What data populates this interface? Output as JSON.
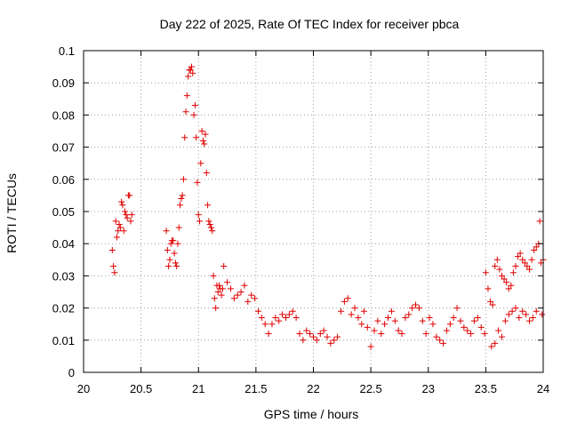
{
  "chart_data": {
    "type": "scatter",
    "title": "Day 222 of 2025, Rate Of TEC Index for receiver pbca",
    "xlabel": "GPS time / hours",
    "ylabel": "ROTI / TECUs",
    "xlim": [
      20,
      24
    ],
    "ylim": [
      0,
      0.1
    ],
    "xticks": [
      "20",
      "20.5",
      "21",
      "21.5",
      "22",
      "22.5",
      "23",
      "23.5",
      "24"
    ],
    "yticks": [
      "0",
      "0.01",
      "0.02",
      "0.03",
      "0.04",
      "0.05",
      "0.06",
      "0.07",
      "0.08",
      "0.09",
      "0.1"
    ],
    "grid": true,
    "marker": "+",
    "color": "#e00000",
    "series": [
      {
        "name": "ROTI",
        "x": [
          20.25,
          20.26,
          20.27,
          20.28,
          20.29,
          20.3,
          20.31,
          20.32,
          20.33,
          20.34,
          20.35,
          20.36,
          20.37,
          20.38,
          20.39,
          20.4,
          20.41,
          20.42,
          20.72,
          20.73,
          20.74,
          20.75,
          20.76,
          20.77,
          20.78,
          20.79,
          20.8,
          20.81,
          20.82,
          20.83,
          20.84,
          20.85,
          20.86,
          20.87,
          20.88,
          20.89,
          20.9,
          20.91,
          20.92,
          20.93,
          20.94,
          20.95,
          20.96,
          20.97,
          20.98,
          20.99,
          21.0,
          21.01,
          21.02,
          21.03,
          21.04,
          21.05,
          21.06,
          21.07,
          21.08,
          21.09,
          21.1,
          21.11,
          21.12,
          21.13,
          21.14,
          21.15,
          21.16,
          21.17,
          21.18,
          21.19,
          21.2,
          21.21,
          21.22,
          21.25,
          21.28,
          21.31,
          21.34,
          21.37,
          21.4,
          21.43,
          21.46,
          21.49,
          21.52,
          21.55,
          21.58,
          21.61,
          21.64,
          21.67,
          21.7,
          21.73,
          21.76,
          21.79,
          21.82,
          21.85,
          21.88,
          21.91,
          21.94,
          21.97,
          22.0,
          22.03,
          22.06,
          22.09,
          22.12,
          22.15,
          22.18,
          22.21,
          22.24,
          22.27,
          22.3,
          22.33,
          22.36,
          22.39,
          22.42,
          22.44,
          22.47,
          22.5,
          22.53,
          22.56,
          22.59,
          22.62,
          22.65,
          22.68,
          22.71,
          22.74,
          22.77,
          22.8,
          22.83,
          22.86,
          22.89,
          22.92,
          22.95,
          22.98,
          23.01,
          23.04,
          23.07,
          23.1,
          23.13,
          23.16,
          23.19,
          23.22,
          23.25,
          23.28,
          23.31,
          23.34,
          23.37,
          23.4,
          23.43,
          23.46,
          23.49,
          23.5,
          23.52,
          23.54,
          23.56,
          23.58,
          23.6,
          23.62,
          23.64,
          23.66,
          23.68,
          23.7,
          23.72,
          23.74,
          23.76,
          23.78,
          23.8,
          23.82,
          23.84,
          23.86,
          23.88,
          23.9,
          23.92,
          23.94,
          23.96,
          23.98,
          24.0,
          23.55,
          23.58,
          23.61,
          23.64,
          23.67,
          23.7,
          23.73,
          23.76,
          23.79,
          23.82,
          23.85,
          23.88,
          23.91,
          23.94,
          23.97,
          23.99
        ],
        "y": [
          0.038,
          0.033,
          0.031,
          0.047,
          0.042,
          0.044,
          0.046,
          0.045,
          0.053,
          0.052,
          0.044,
          0.05,
          0.049,
          0.048,
          0.055,
          0.055,
          0.047,
          0.049,
          0.044,
          0.038,
          0.033,
          0.035,
          0.04,
          0.041,
          0.041,
          0.037,
          0.034,
          0.033,
          0.04,
          0.045,
          0.052,
          0.054,
          0.055,
          0.06,
          0.073,
          0.081,
          0.086,
          0.092,
          0.094,
          0.094,
          0.095,
          0.093,
          0.08,
          0.083,
          0.073,
          0.059,
          0.049,
          0.047,
          0.065,
          0.075,
          0.072,
          0.071,
          0.074,
          0.062,
          0.052,
          0.047,
          0.046,
          0.045,
          0.044,
          0.03,
          0.023,
          0.02,
          0.027,
          0.025,
          0.027,
          0.026,
          0.024,
          0.026,
          0.033,
          0.028,
          0.026,
          0.023,
          0.024,
          0.025,
          0.027,
          0.022,
          0.024,
          0.023,
          0.019,
          0.017,
          0.015,
          0.012,
          0.015,
          0.017,
          0.016,
          0.018,
          0.017,
          0.018,
          0.019,
          0.017,
          0.012,
          0.01,
          0.013,
          0.012,
          0.011,
          0.01,
          0.012,
          0.013,
          0.011,
          0.009,
          0.01,
          0.011,
          0.019,
          0.022,
          0.023,
          0.018,
          0.02,
          0.017,
          0.015,
          0.019,
          0.014,
          0.008,
          0.013,
          0.016,
          0.012,
          0.015,
          0.017,
          0.019,
          0.016,
          0.013,
          0.012,
          0.017,
          0.018,
          0.02,
          0.021,
          0.02,
          0.016,
          0.012,
          0.017,
          0.015,
          0.011,
          0.01,
          0.009,
          0.013,
          0.015,
          0.017,
          0.02,
          0.016,
          0.014,
          0.013,
          0.012,
          0.016,
          0.017,
          0.014,
          0.012,
          0.031,
          0.026,
          0.022,
          0.021,
          0.033,
          0.035,
          0.032,
          0.03,
          0.029,
          0.028,
          0.026,
          0.027,
          0.031,
          0.033,
          0.036,
          0.037,
          0.035,
          0.034,
          0.033,
          0.032,
          0.035,
          0.038,
          0.039,
          0.04,
          0.034,
          0.035,
          0.008,
          0.009,
          0.013,
          0.011,
          0.016,
          0.018,
          0.019,
          0.02,
          0.017,
          0.019,
          0.018,
          0.016,
          0.017,
          0.019,
          0.047,
          0.018
        ]
      }
    ]
  }
}
